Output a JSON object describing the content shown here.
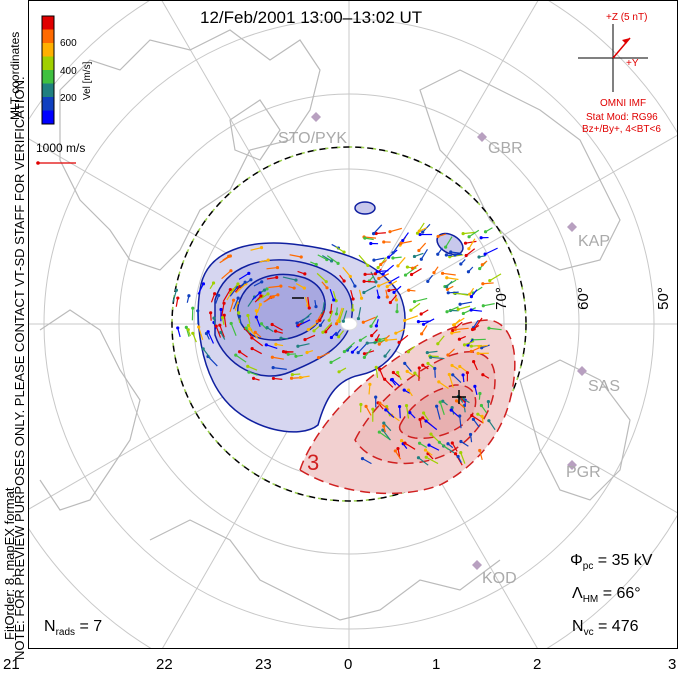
{
  "title": "12/Feb/2001 13:00–13:02 UT",
  "side_note": "NOTE: FOR PREVIEW PURPOSES ONLY. PLEASE CONTACT VT-SD STAFF FOR VERIFICATION.",
  "fit_order": "FitOrder: 8, mapEX format",
  "coords_label": "MLT coordinates",
  "color_bar": {
    "unit_label": "Vel [m/s]",
    "ticks": [
      "600",
      "400",
      "200"
    ],
    "colors": [
      "#e00000",
      "#ff6a00",
      "#ffb000",
      "#a0d000",
      "#40c040",
      "#208080",
      "#1040c0",
      "#0000ff"
    ]
  },
  "vector_scale": "1000 m/s",
  "imf": {
    "z_label": "+Z (5 nT)",
    "y_label": "+Y",
    "source": "OMNI IMF",
    "stat_mod": "Stat Mod: RG96",
    "bins": "Bz+/By+, 4<BT<6"
  },
  "stations": [
    "STO/PYK",
    "GBR",
    "KAP",
    "SAS",
    "PGR",
    "KOD"
  ],
  "latitudes": [
    "70°",
    "60°",
    "50°"
  ],
  "contour_labels": {
    "minus": "–",
    "plus": "+",
    "three": "3"
  },
  "stats": {
    "phi_pc": "35 kV",
    "lambda_hm": "66°",
    "n_vc": "476",
    "n_rads": "7"
  },
  "mlt_ticks": [
    "21",
    "22",
    "23",
    "0",
    "1",
    "2",
    "3"
  ]
}
